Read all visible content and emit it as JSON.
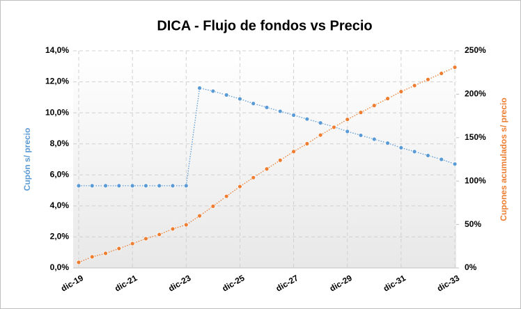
{
  "chart_data": {
    "type": "line",
    "title": "DICA - Flujo de fondos vs Precio",
    "ylabel": "Cupón s/ precio",
    "y2label": "Cupones  acumulados s/ precio",
    "categories": [
      "dic-19",
      null,
      null,
      null,
      "dic-21",
      null,
      null,
      null,
      "dic-23",
      null,
      null,
      null,
      "dic-25",
      null,
      null,
      null,
      "dic-27",
      null,
      null,
      null,
      "dic-29",
      null,
      null,
      null,
      "dic-31",
      null,
      null,
      null,
      "dic-33"
    ],
    "series": [
      {
        "name": "Cupón s/ precio",
        "color": "#5b9bd5",
        "axis": "y",
        "values": [
          5.3,
          5.3,
          5.3,
          5.3,
          5.3,
          5.3,
          5.3,
          5.3,
          5.3,
          11.6,
          11.4,
          11.15,
          10.9,
          10.6,
          10.35,
          10.1,
          9.85,
          9.6,
          9.35,
          9.1,
          8.8,
          8.55,
          8.3,
          8.05,
          7.75,
          7.5,
          7.25,
          7.0,
          6.7
        ]
      },
      {
        "name": "Cupones acumulados s/ precio",
        "color": "#ed7d31",
        "axis": "y2",
        "values": [
          6.4,
          12.8,
          16.8,
          22.4,
          28,
          33.7,
          38.5,
          44.9,
          49.7,
          60,
          71,
          82.5,
          93.7,
          104,
          114,
          124,
          134,
          143,
          153,
          162,
          171,
          179,
          187,
          195,
          203,
          210,
          217,
          224,
          231
        ]
      }
    ],
    "ylim": [
      0,
      14
    ],
    "yticks": [
      {
        "value": 0,
        "label": "0,0%"
      },
      {
        "value": 2,
        "label": "2,0%"
      },
      {
        "value": 4,
        "label": "4,0%"
      },
      {
        "value": 6,
        "label": "6,0%"
      },
      {
        "value": 8,
        "label": "8,0%"
      },
      {
        "value": 10,
        "label": "10,0%"
      },
      {
        "value": 12,
        "label": "12,0%"
      },
      {
        "value": 14,
        "label": "14,0%"
      }
    ],
    "y2lim": [
      0,
      250
    ],
    "y2ticks": [
      {
        "value": 0,
        "label": "0%"
      },
      {
        "value": 50,
        "label": "50%"
      },
      {
        "value": 100,
        "label": "100%"
      },
      {
        "value": 150,
        "label": "150%"
      },
      {
        "value": 200,
        "label": "200%"
      },
      {
        "value": 250,
        "label": "250%"
      }
    ],
    "grid": true
  }
}
